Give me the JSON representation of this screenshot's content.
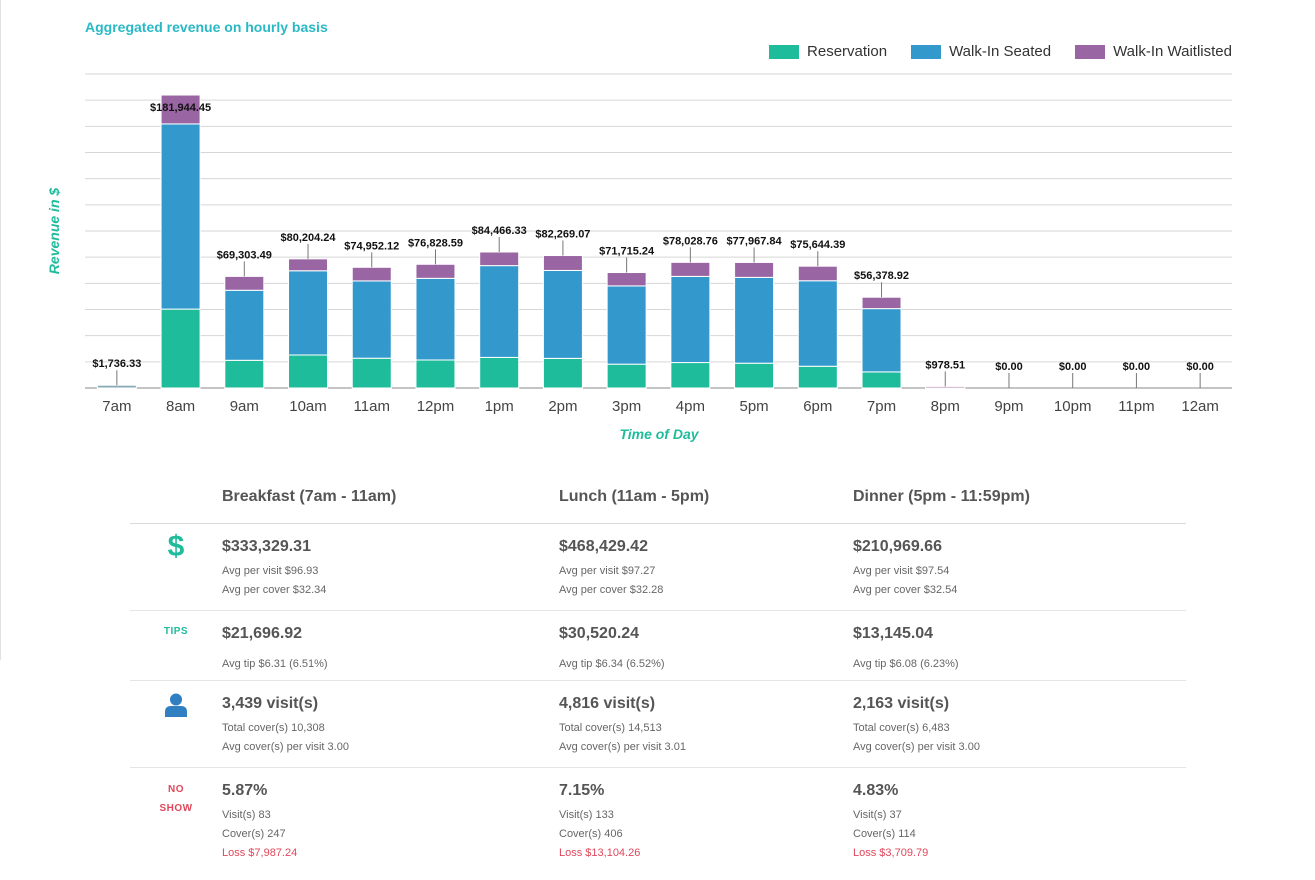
{
  "chart_data": {
    "type": "bar",
    "stacked": true,
    "title": "Aggregated revenue on hourly basis",
    "xlabel": "Time of Day",
    "ylabel": "Revenue in $",
    "grid": true,
    "legend_position": "top-right",
    "ylim": [
      0,
      195000
    ],
    "categories": [
      "7am",
      "8am",
      "9am",
      "10am",
      "11am",
      "12pm",
      "1pm",
      "2pm",
      "3pm",
      "4pm",
      "5pm",
      "6pm",
      "7pm",
      "8pm",
      "9pm",
      "10pm",
      "11pm",
      "12am"
    ],
    "series": [
      {
        "name": "Reservation",
        "color": "#1fbc9c",
        "values": [
          1736.33,
          49000,
          17200,
          20500,
          18500,
          17400,
          19000,
          18400,
          14800,
          15800,
          15400,
          13500,
          10000,
          600,
          0,
          0,
          0,
          0
        ]
      },
      {
        "name": "Walk-In Seated",
        "color": "#3399cc",
        "values": [
          0,
          115000,
          43500,
          52300,
          48000,
          50700,
          57000,
          54600,
          48600,
          53500,
          53300,
          53100,
          39300,
          300,
          0,
          0,
          0,
          0
        ]
      },
      {
        "name": "Walk-In Waitlisted",
        "color": "#9966a3",
        "values": [
          0,
          17944.45,
          8603.49,
          7404.24,
          8452.12,
          8728.59,
          8466.33,
          9269.07,
          8315.24,
          8728.76,
          9267.84,
          9044.39,
          7078.92,
          78.51,
          0,
          0,
          0,
          0
        ]
      }
    ],
    "totals": [
      "$1,736.33",
      "$181,944.45",
      "$69,303.49",
      "$80,204.24",
      "$74,952.12",
      "$76,828.59",
      "$84,466.33",
      "$82,269.07",
      "$71,715.24",
      "$78,028.76",
      "$77,967.84",
      "$75,644.39",
      "$56,378.92",
      "$978.51",
      "$0.00",
      "$0.00",
      "$0.00",
      "$0.00"
    ],
    "first_bar_color": "#8aaab8"
  },
  "summary": {
    "headers": [
      "Breakfast (7am - 11am)",
      "Lunch (11am - 5pm)",
      "Dinner (5pm - 11:59pm)"
    ],
    "revenue": {
      "icon": "dollar-icon",
      "icon_text": "$",
      "cols": [
        {
          "big": "$333,329.31",
          "l1": "Avg per visit $96.93",
          "l2": "Avg per cover $32.34"
        },
        {
          "big": "$468,429.42",
          "l1": "Avg per visit $97.27",
          "l2": "Avg per cover $32.28"
        },
        {
          "big": "$210,969.66",
          "l1": "Avg per visit $97.54",
          "l2": "Avg per cover $32.54"
        }
      ]
    },
    "tips": {
      "icon_text": "TIPS",
      "cols": [
        {
          "big": "$21,696.92",
          "l1": "Avg tip $6.31 (6.51%)"
        },
        {
          "big": "$30,520.24",
          "l1": "Avg tip $6.34 (6.52%)"
        },
        {
          "big": "$13,145.04",
          "l1": "Avg tip $6.08 (6.23%)"
        }
      ]
    },
    "visits": {
      "icon": "user-icon",
      "cols": [
        {
          "big": "3,439 visit(s)",
          "l1": "Total cover(s) 10,308",
          "l2": "Avg cover(s) per visit 3.00"
        },
        {
          "big": "4,816 visit(s)",
          "l1": "Total cover(s) 14,513",
          "l2": "Avg cover(s) per visit 3.01"
        },
        {
          "big": "2,163 visit(s)",
          "l1": "Total cover(s) 6,483",
          "l2": "Avg cover(s) per visit 3.00"
        }
      ]
    },
    "noshow": {
      "icon_line1": "NO",
      "icon_line2": "SHOW",
      "cols": [
        {
          "big": "5.87%",
          "l1": "Visit(s) 83",
          "l2": "Cover(s) 247",
          "l3": "Loss $7,987.24"
        },
        {
          "big": "7.15%",
          "l1": "Visit(s) 133",
          "l2": "Cover(s) 406",
          "l3": "Loss $13,104.26"
        },
        {
          "big": "4.83%",
          "l1": "Visit(s) 37",
          "l2": "Cover(s) 114",
          "l3": "Loss $3,709.79"
        }
      ]
    }
  }
}
